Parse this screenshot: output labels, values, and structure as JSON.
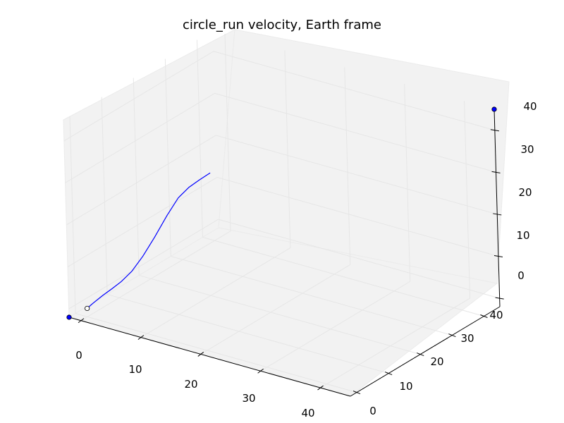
{
  "chart_data": {
    "type": "line",
    "projection": "3d",
    "title": "circle_run velocity, Earth frame",
    "xlabel": "",
    "ylabel": "",
    "zlabel": "",
    "xlim": [
      -2,
      45
    ],
    "ylim": [
      -2,
      45
    ],
    "zlim": [
      -2,
      45
    ],
    "x_ticks": [
      0,
      10,
      20,
      30,
      40
    ],
    "y_ticks": [
      0,
      10,
      20,
      30,
      40
    ],
    "z_ticks": [
      0,
      10,
      20,
      30,
      40
    ],
    "x_tick_labels": [
      "0",
      "10",
      "20",
      "30",
      "40"
    ],
    "y_tick_labels": [
      "0",
      "10",
      "20",
      "30",
      "40"
    ],
    "z_tick_labels": [
      "0",
      "10",
      "20",
      "30",
      "40"
    ],
    "grid": true,
    "pane_color": "#f2f2f2",
    "series": [
      {
        "color": "#0000ff",
        "x": [
          0,
          0.4,
          1.1,
          2.0,
          3.0,
          4.2,
          5.5,
          6.8,
          8.0,
          9.0,
          10.0,
          11.0,
          12.1
        ],
        "y": [
          0,
          1.2,
          2.8,
          4.3,
          5.3,
          6.4,
          7.6,
          9.0,
          10.8,
          12.6,
          14.2,
          15.5,
          17.0
        ],
        "z": [
          0,
          0.9,
          2.2,
          3.6,
          5.2,
          7.6,
          11.2,
          15.6,
          20.4,
          24.2,
          26.4,
          27.9,
          29.4
        ]
      }
    ],
    "markers": [
      {
        "role": "origin",
        "x": -2,
        "y": -2,
        "z": -2,
        "color": "#0000ff"
      },
      {
        "role": "start",
        "x": 0,
        "y": 0,
        "z": 0,
        "color": "#ffffff"
      },
      {
        "role": "extent",
        "x": 45,
        "y": 45,
        "z": 45,
        "color": "#0000ff"
      }
    ]
  }
}
